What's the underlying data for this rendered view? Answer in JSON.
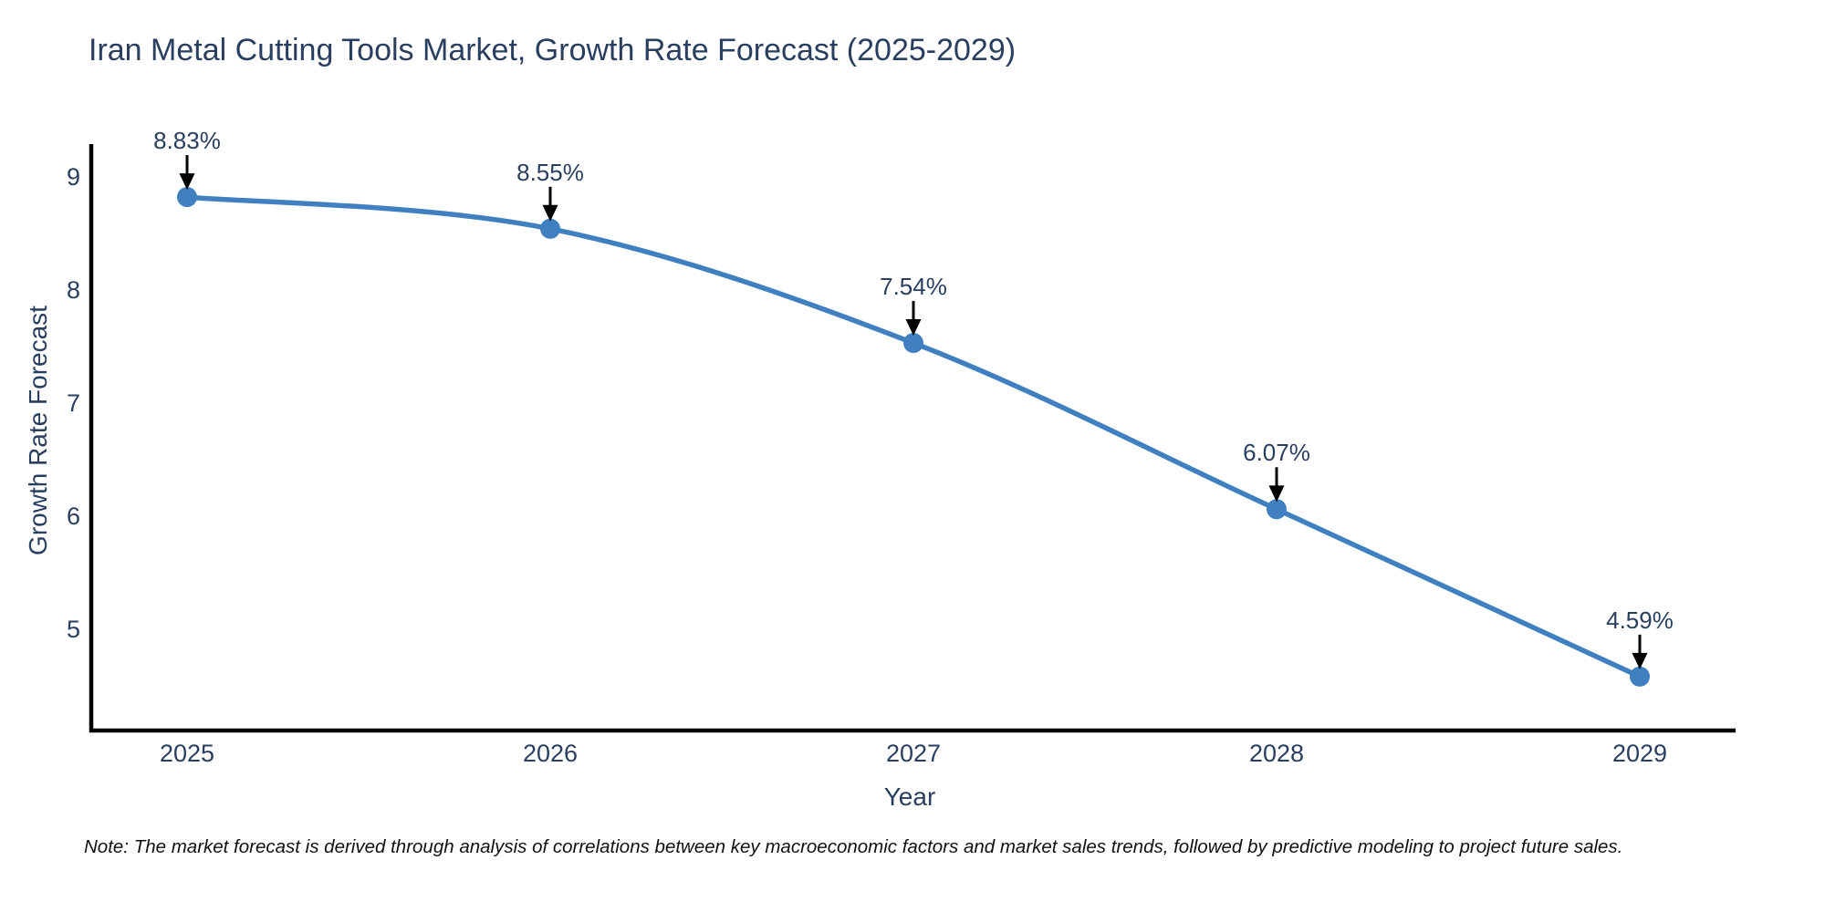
{
  "title": "Iran Metal Cutting Tools Market, Growth Rate Forecast (2025-2029)",
  "note": "Note: The market forecast is derived through analysis of correlations between key macroeconomic factors and market sales trends, followed by predictive modeling to project future sales.",
  "chart_data": {
    "type": "line",
    "title": "Iran Metal Cutting Tools Market, Growth Rate Forecast (2025-2029)",
    "xlabel": "Year",
    "ylabel": "Growth Rate Forecast",
    "categories": [
      "2025",
      "2026",
      "2027",
      "2028",
      "2029"
    ],
    "values": [
      8.83,
      8.55,
      7.54,
      6.07,
      4.59
    ],
    "point_labels": [
      "8.83%",
      "8.55%",
      "7.54%",
      "6.07%",
      "4.59%"
    ],
    "yticks": [
      "9",
      "8",
      "7",
      "6",
      "5"
    ],
    "ytick_values": [
      9,
      8,
      7,
      6,
      5
    ],
    "ylim": [
      4.12,
      9.54
    ],
    "line_shape": "spline",
    "grid": false,
    "legend_position": "none",
    "annotations": "black down-arrows from each label to its marker",
    "colors": {
      "line": "#4080c0",
      "marker": "#4080c0",
      "arrow": "#000000",
      "axis_line": "#000000",
      "title_text": "#2a3f5f",
      "tick_text": "#2a3f5f",
      "note_text": "#111111",
      "background": "#ffffff"
    }
  }
}
